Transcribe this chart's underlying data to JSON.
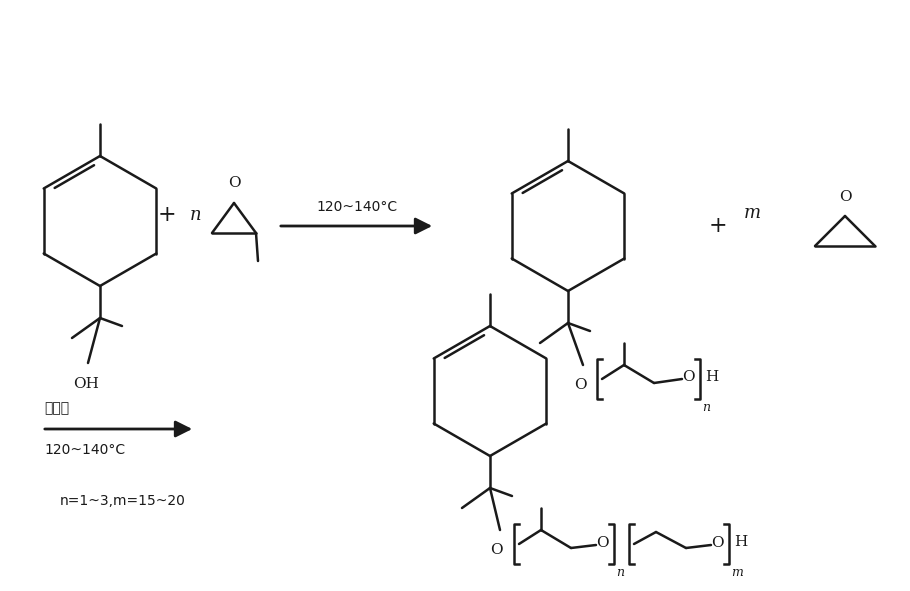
{
  "background_color": "#ffffff",
  "line_color": "#1a1a1a",
  "text_color": "#1a1a1a",
  "reaction1_condition": "120~140°C",
  "reaction2_condition1": "催化剂",
  "reaction2_condition2": "120~140°C",
  "label_n": "n",
  "label_m": "m",
  "label_plus": "+",
  "label_OH": "OH",
  "label_O": "O",
  "label_H": "H",
  "label_subscript_n": "n",
  "label_subscript_m": "m",
  "label_nm": "n=1~3,m=15~20",
  "lw": 1.8
}
